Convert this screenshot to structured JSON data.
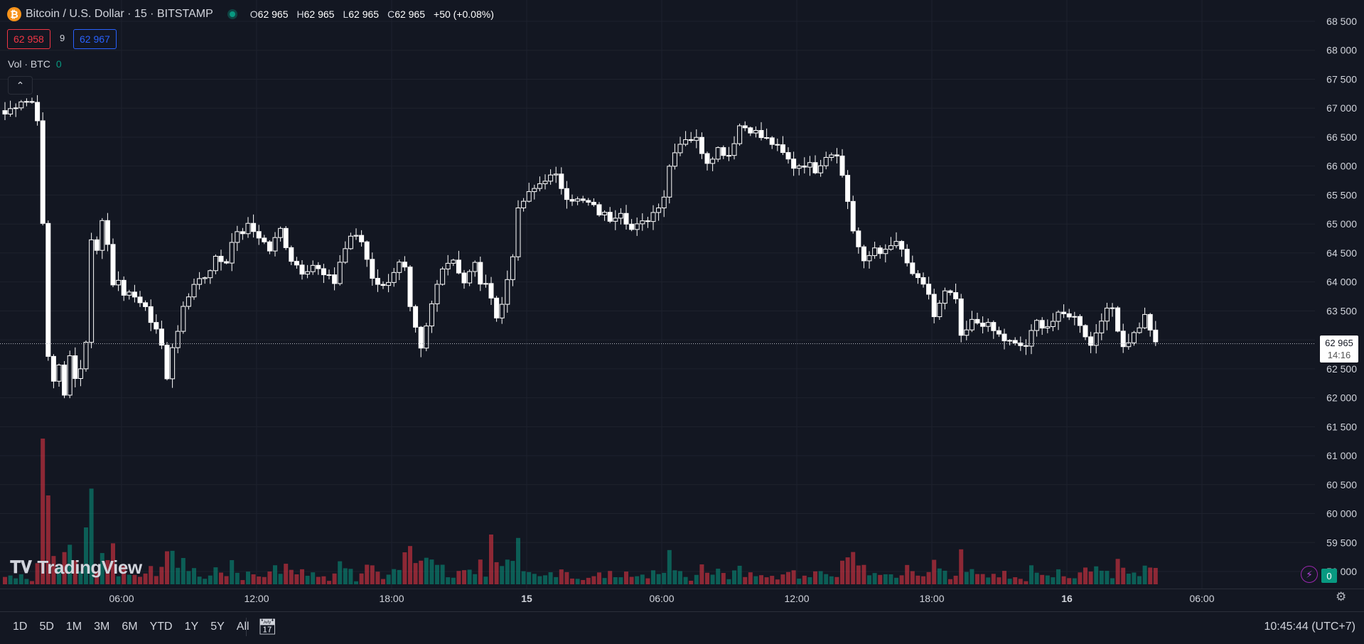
{
  "header": {
    "title": "Bitcoin / U.S. Dollar · 15 · BITSTAMP",
    "coin_icon": "bitcoin-icon",
    "open_label": "O",
    "open": "62 965",
    "high_label": "H",
    "high": "62 965",
    "low_label": "L",
    "low": "62 965",
    "close_label": "C",
    "close": "62 965",
    "change": "+50 (+0.08%)"
  },
  "trade": {
    "sell_price": "62 958",
    "spread": "9",
    "buy_price": "62 967"
  },
  "volume_legend": {
    "label": "Vol · BTC",
    "value": "0"
  },
  "logo_text": "TradingView",
  "current_price": {
    "value": "62 965",
    "countdown": "14:16"
  },
  "bottom_bar": {
    "ranges": [
      "1D",
      "5D",
      "1M",
      "3M",
      "6M",
      "YTD",
      "1Y",
      "5Y",
      "All"
    ],
    "clock": "10:45:44 (UTC+7)"
  },
  "badges": {
    "alerts_count": "0"
  },
  "colors": {
    "up": "#089981",
    "down": "#f23645",
    "candle_body": "#ffffff",
    "background": "#131722",
    "grid": "#1e222d"
  },
  "chart_data": {
    "type": "candlestick",
    "symbol": "BTCUSD",
    "interval": "15",
    "exchange": "BITSTAMP",
    "y_ticks": [
      68500,
      68000,
      67500,
      67000,
      66500,
      66000,
      65500,
      65000,
      64500,
      64000,
      63500,
      63000,
      62500,
      62000,
      61500,
      61000,
      60500,
      60000,
      59500,
      59000
    ],
    "ylim": [
      58850,
      68600
    ],
    "x_ticks": [
      "06:00",
      "12:00",
      "18:00",
      "15",
      "06:00",
      "12:00",
      "18:00",
      "16",
      "06:00"
    ],
    "last_price": 62965,
    "close_path": [
      [
        0,
        66900
      ],
      [
        3,
        67150
      ],
      [
        5,
        67100
      ],
      [
        6,
        66850
      ],
      [
        7,
        64950
      ],
      [
        8,
        62700
      ],
      [
        9,
        62300
      ],
      [
        10,
        62600
      ],
      [
        11,
        62000
      ],
      [
        12,
        62700
      ],
      [
        13,
        62400
      ],
      [
        14,
        62500
      ],
      [
        15,
        63000
      ],
      [
        16,
        64700
      ],
      [
        17,
        64600
      ],
      [
        18,
        65050
      ],
      [
        19,
        64650
      ],
      [
        20,
        64000
      ],
      [
        21,
        64100
      ],
      [
        22,
        63700
      ],
      [
        24,
        63800
      ],
      [
        26,
        63500
      ],
      [
        28,
        63200
      ],
      [
        29,
        62900
      ],
      [
        30,
        62300
      ],
      [
        31,
        62900
      ],
      [
        33,
        63500
      ],
      [
        35,
        64000
      ],
      [
        37,
        64100
      ],
      [
        39,
        64400
      ],
      [
        41,
        64350
      ],
      [
        42,
        64750
      ],
      [
        43,
        64800
      ],
      [
        45,
        64950
      ],
      [
        47,
        64800
      ],
      [
        49,
        64550
      ],
      [
        51,
        64900
      ],
      [
        53,
        64400
      ],
      [
        55,
        64200
      ],
      [
        57,
        64300
      ],
      [
        59,
        64100
      ],
      [
        61,
        64000
      ],
      [
        62,
        64350
      ],
      [
        64,
        64800
      ],
      [
        66,
        64700
      ],
      [
        68,
        64100
      ],
      [
        70,
        63900
      ],
      [
        72,
        64200
      ],
      [
        73,
        64300
      ],
      [
        74,
        64200
      ],
      [
        75,
        63500
      ],
      [
        77,
        62800
      ],
      [
        79,
        63600
      ],
      [
        81,
        64300
      ],
      [
        83,
        64400
      ],
      [
        85,
        64000
      ],
      [
        87,
        64300
      ],
      [
        88,
        64000
      ],
      [
        90,
        63800
      ],
      [
        91,
        63400
      ],
      [
        92,
        63600
      ],
      [
        94,
        64500
      ],
      [
        95,
        65200
      ],
      [
        96,
        65400
      ],
      [
        98,
        65600
      ],
      [
        100,
        65800
      ],
      [
        102,
        65800
      ],
      [
        104,
        65500
      ],
      [
        106,
        65400
      ],
      [
        108,
        65350
      ],
      [
        110,
        65200
      ],
      [
        112,
        65100
      ],
      [
        114,
        65250
      ],
      [
        116,
        64900
      ],
      [
        118,
        65000
      ],
      [
        120,
        65200
      ],
      [
        122,
        65500
      ],
      [
        123,
        66000
      ],
      [
        124,
        66300
      ],
      [
        126,
        66500
      ],
      [
        128,
        66450
      ],
      [
        130,
        66100
      ],
      [
        132,
        66300
      ],
      [
        134,
        66200
      ],
      [
        136,
        66700
      ],
      [
        138,
        66650
      ],
      [
        140,
        66500
      ],
      [
        142,
        66400
      ],
      [
        144,
        66200
      ],
      [
        146,
        66000
      ],
      [
        148,
        66050
      ],
      [
        150,
        65950
      ],
      [
        152,
        66200
      ],
      [
        154,
        66250
      ],
      [
        156,
        65400
      ],
      [
        157,
        64900
      ],
      [
        159,
        64300
      ],
      [
        161,
        64600
      ],
      [
        163,
        64500
      ],
      [
        165,
        64700
      ],
      [
        167,
        64300
      ],
      [
        169,
        64000
      ],
      [
        171,
        63800
      ],
      [
        172,
        63400
      ],
      [
        174,
        63800
      ],
      [
        176,
        63700
      ],
      [
        177,
        63000
      ],
      [
        179,
        63300
      ],
      [
        181,
        63300
      ],
      [
        183,
        63150
      ],
      [
        185,
        63000
      ],
      [
        187,
        62900
      ],
      [
        189,
        62900
      ],
      [
        191,
        63300
      ],
      [
        193,
        63250
      ],
      [
        195,
        63400
      ],
      [
        197,
        63450
      ],
      [
        199,
        63300
      ],
      [
        201,
        62900
      ],
      [
        203,
        63400
      ],
      [
        205,
        63550
      ],
      [
        207,
        62900
      ],
      [
        209,
        63100
      ],
      [
        211,
        63400
      ],
      [
        212,
        63200
      ],
      [
        213,
        62965
      ]
    ]
  }
}
